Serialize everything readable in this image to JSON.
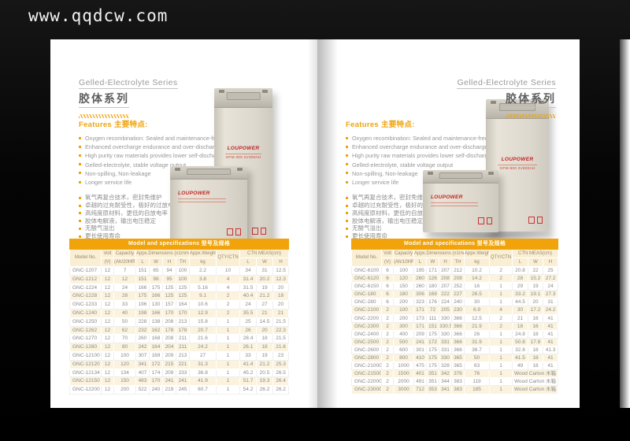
{
  "watermark": "www.qqdcw.com",
  "accent_color": "#F0A30A",
  "page_left": {
    "title_en": "Gelled-Electrolyte Series",
    "title_cn": "胶体系列",
    "features": {
      "heading": "Features 主要特点:",
      "items_en": [
        "Oxygen recombination: Sealed and maintenance-free",
        "Enhanced overcharge endurance and over-discharge recovery",
        "High purity raw materials provides lower self-discharge",
        "Gelled-electrolyte, stable voltage output",
        "Non-spilling, Non-leakage",
        "Longer service life"
      ],
      "items_cn": [
        "氧气再复合技术，密封免维护",
        "卓越的过充耐受性，极好的过放电恢复能力",
        "高纯度原材料，更低的自放电率",
        "胶体电解液，输出电压稳定",
        "无酸气溢出",
        "更长使用寿命"
      ]
    },
    "battery": {
      "brand": "LOUPOWER",
      "tall_label": "GFM-300  2V300AH"
    },
    "table": {
      "title": "Model and specifications 型号及规格",
      "headers": {
        "model": "Model No.",
        "volt": "Volt",
        "volt_unit": "(V)",
        "capacity": "Capacity",
        "capacity_unit": "(Ah/20HR)",
        "dims": "Appx.Dimensions (±1mm)",
        "l": "L",
        "w": "W",
        "h": "H",
        "th": "TH",
        "weight": "Appx.Weight",
        "weight_unit": "kg",
        "qty": "QTY/CTN",
        "ctn": "CTN MEAS(cm)"
      },
      "rows": [
        [
          "GNC-1207",
          "12",
          "7",
          "151",
          "65",
          "94",
          "100",
          "2.2",
          "10",
          "34",
          "31",
          "12.5"
        ],
        [
          "GNC-1212",
          "12",
          "12",
          "151",
          "98",
          "95",
          "100",
          "3.8",
          "4",
          "31.4",
          "20.2",
          "12.3"
        ],
        [
          "GNC-1224",
          "12",
          "24",
          "166",
          "175",
          "125",
          "125",
          "5.16",
          "4",
          "31.5",
          "19",
          "20"
        ],
        [
          "GNC-1228",
          "12",
          "28",
          "175",
          "166",
          "125",
          "125",
          "9.1",
          "2",
          "40.4",
          "21.2",
          "18"
        ],
        [
          "GNC-1233",
          "12",
          "33",
          "196",
          "130",
          "157",
          "164",
          "10.6",
          "2",
          "24",
          "27",
          "20"
        ],
        [
          "GNC-1240",
          "12",
          "40",
          "198",
          "166",
          "170",
          "170",
          "12.9",
          "2",
          "35.5",
          "21",
          "21"
        ],
        [
          "GNC-1250",
          "12",
          "50",
          "228",
          "138",
          "208",
          "213",
          "15.8",
          "1",
          "25",
          "14.5",
          "21.5"
        ],
        [
          "GNC-1262",
          "12",
          "62",
          "232",
          "162",
          "178",
          "178",
          "20.7",
          "1",
          "26",
          "20",
          "22.3"
        ],
        [
          "GNC-1270",
          "12",
          "70",
          "260",
          "168",
          "208",
          "211",
          "21.6",
          "1",
          "28.4",
          "18",
          "21.5"
        ],
        [
          "GNC-1280",
          "12",
          "80",
          "242",
          "164",
          "204",
          "211",
          "24.2",
          "1",
          "26.1",
          "18",
          "21.6"
        ],
        [
          "GNC-12100",
          "12",
          "100",
          "307",
          "169",
          "209",
          "213",
          "27",
          "1",
          "33",
          "19",
          "23"
        ],
        [
          "GNC-12120",
          "12",
          "120",
          "341",
          "172",
          "215",
          "221",
          "31.3",
          "1",
          "41.4",
          "21.2",
          "25.3"
        ],
        [
          "GNC-12134",
          "12",
          "134",
          "407",
          "174",
          "209",
          "233",
          "36.8",
          "1",
          "45.2",
          "20.5",
          "26.5"
        ],
        [
          "GNC-12150",
          "12",
          "150",
          "483",
          "170",
          "241",
          "241",
          "41.9",
          "1",
          "51.7",
          "19.3",
          "26.4"
        ],
        [
          "GNC-12200",
          "12",
          "200",
          "522",
          "240",
          "219",
          "245",
          "60.7",
          "1",
          "54.2",
          "26.2",
          "26.2"
        ]
      ]
    }
  },
  "page_right": {
    "title_en": "Gelled-Electrolyte Series",
    "title_cn": "胶体系列",
    "features": {
      "heading": "Features 主要特点:",
      "items_en": [
        "Oxygen recombination: Sealed and maintenance-free",
        "Enhanced overcharge endurance and over-discharge recovery",
        "High purity raw materials provides lower self-discharge",
        "Gelled-electrolyte, stable voltage output",
        "Non-spilling, Non-leakage",
        "Longer service life"
      ],
      "items_cn": [
        "氧气再复合技术，密封免维护",
        "卓越的过充耐受性，极好的过放电恢复能力",
        "高纯度原材料，更低的自放电率",
        "胶体电解液，输出电压稳定",
        "无酸气溢出",
        "更长使用寿命"
      ]
    },
    "battery": {
      "brand": "LOUPOWER",
      "tall_label": "GFM-800  2V800AH"
    },
    "table": {
      "title": "Model and specifications 型号及规格",
      "headers": {
        "model": "Model No.",
        "volt": "Volt",
        "volt_unit": "(V)",
        "capacity": "Capacity",
        "capacity_unit": "(Ah/10HR)",
        "dims": "Appx.Dimensions (±1mm)",
        "l": "L",
        "w": "W",
        "h": "H",
        "th": "TH",
        "weight": "Appx.Weight",
        "weight_unit": "kg",
        "qty": "QTY/CTN",
        "ctn": "CTN MEAS(cm)"
      },
      "rows": [
        [
          "GNC-6100",
          "6",
          "100",
          "195",
          "171",
          "207",
          "212",
          "10.2",
          "2",
          "20.8",
          "22",
          "25"
        ],
        [
          "GNC-6120",
          "6",
          "120",
          "260",
          "126",
          "208",
          "208",
          "14.2",
          "2",
          "28",
          "15.2",
          "27.2"
        ],
        [
          "GNC-6150",
          "6",
          "150",
          "260",
          "180",
          "207",
          "252",
          "16",
          "1",
          "29",
          "19",
          "24"
        ],
        [
          "GNC-180",
          "6",
          "180",
          "306",
          "169",
          "222",
          "227",
          "26.5",
          "1",
          "33.2",
          "19.1",
          "27.3"
        ],
        [
          "GNC-280",
          "6",
          "200",
          "323",
          "176",
          "224",
          "240",
          "30",
          "1",
          "44.5",
          "20",
          "31"
        ],
        [
          "GNC-2100",
          "2",
          "100",
          "171",
          "72",
          "205",
          "230",
          "6.9",
          "4",
          "30",
          "17.2",
          "24.2"
        ],
        [
          "GNC-2200",
          "2",
          "200",
          "173",
          "111",
          "330",
          "366",
          "12.5",
          "2",
          "21",
          "16",
          "41"
        ],
        [
          "GNC-2300",
          "2",
          "300",
          "171",
          "151",
          "330.5",
          "366",
          "21.9",
          "2",
          "18",
          "16",
          "41"
        ],
        [
          "GNC-2400",
          "2",
          "400",
          "209",
          "175",
          "330",
          "366",
          "26",
          "1",
          "24.8",
          "18",
          "41"
        ],
        [
          "GNC-2500",
          "2",
          "500",
          "241",
          "172",
          "331",
          "366",
          "31.9",
          "1",
          "50.8",
          "17.8",
          "41"
        ],
        [
          "GNC-2600",
          "2",
          "600",
          "301",
          "175",
          "331",
          "366",
          "36.7",
          "1",
          "32.8",
          "18",
          "41.3"
        ],
        [
          "GNC-2800",
          "2",
          "800",
          "410",
          "175",
          "330",
          "365",
          "50",
          "1",
          "41.5",
          "18",
          "41"
        ],
        [
          "GNC-21000",
          "2",
          "1000",
          "475",
          "175",
          "328",
          "365",
          "63",
          "1",
          "49",
          "18",
          "41"
        ],
        [
          "GNC-21500",
          "2",
          "1500",
          "401",
          "351",
          "342",
          "376",
          "76",
          "1",
          "Wood Carton 木箱"
        ],
        [
          "GNC-22000",
          "2",
          "2000",
          "491",
          "351",
          "344",
          "383",
          "119",
          "1",
          "Wood Carton 木箱"
        ],
        [
          "GNC-23000",
          "2",
          "3000",
          "712",
          "353",
          "341",
          "383",
          "185",
          "1",
          "Wood Carton 木箱"
        ]
      ]
    }
  }
}
